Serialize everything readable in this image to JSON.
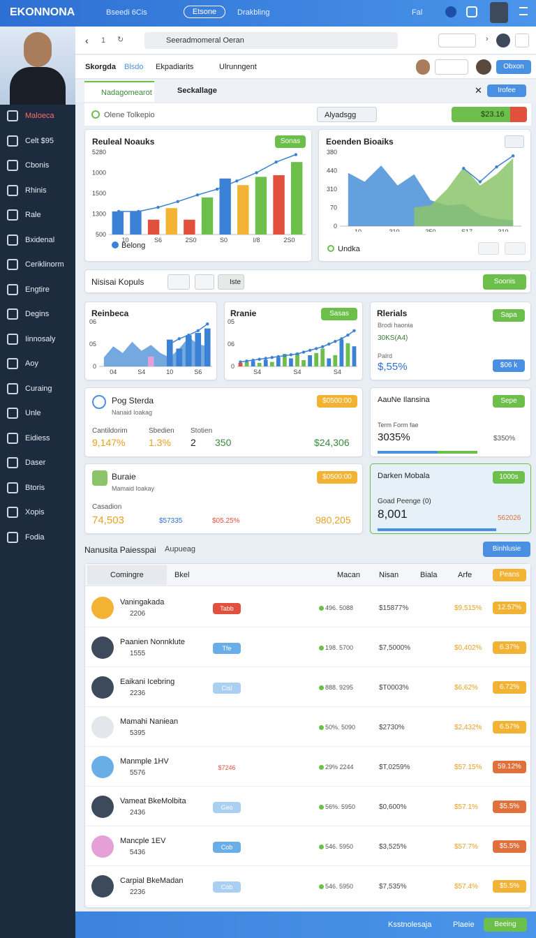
{
  "topbar": {
    "brand": "EKONNONA",
    "link1": "Bseedi 6Cis",
    "pill": "Etsone",
    "link2": "Drakbling",
    "link3": "Fal"
  },
  "sidebar": {
    "items": [
      "Maloeca",
      "Celt $95",
      "Cbonis",
      "Rhinis",
      "Rale",
      "Bxidenal",
      "Ceriklinorm",
      "Engtire",
      "Degins",
      "Iinnosaly",
      "Aoy",
      "Curaing",
      "Unle",
      "Eidiess",
      "Daser",
      "Btoris",
      "Xopis",
      "Fodia"
    ]
  },
  "browser": {
    "page": "1",
    "search": "Seeradmomeral Oeran"
  },
  "tabs": {
    "items": [
      "Skorgda",
      "Blsdo",
      "Ekpadiarits",
      "Ulrunngent"
    ],
    "button": "Obxon"
  },
  "subtabs": {
    "items": [
      "Nadagomearot",
      "Seckallage"
    ],
    "button": "Irofee"
  },
  "filter": {
    "radio": "Olene Tolkepio",
    "dropdown": "Alyadsgg",
    "price": "$23.16"
  },
  "charts": [
    {
      "title": "Reuleal Noauks",
      "action": "Sonas",
      "legend": "Belong",
      "ylim": [
        0,
        100
      ],
      "y_labels": [
        "5280",
        "1000",
        "1500",
        "1300",
        "500"
      ],
      "x_labels": [
        "10",
        "S6",
        "2S0",
        "S0",
        "I/8",
        "2S0"
      ],
      "bars": {
        "values": [
          28,
          28,
          18,
          32,
          18,
          45,
          68,
          60,
          70,
          72,
          88
        ],
        "colors": [
          "#3b82d6",
          "#3b82d6",
          "#e0503c",
          "#f2b233",
          "#e0503c",
          "#6cbf4a",
          "#3b82d6",
          "#f2b233",
          "#6cbf4a",
          "#e0503c",
          "#6cbf4a"
        ]
      },
      "line": {
        "color": "#3b82d6",
        "values": [
          28,
          28,
          33,
          40,
          48,
          55,
          65,
          75,
          88,
          97
        ]
      }
    },
    {
      "title": "Eoenden Bioaiks",
      "legend": "Undka",
      "ylim": [
        0,
        100
      ],
      "y_labels": [
        "380",
        "440",
        "310",
        "70",
        "0"
      ],
      "x_labels": [
        "10",
        "310",
        "350",
        "S17",
        "310"
      ],
      "areas": [
        {
          "color": "#4a8fd8",
          "values": [
            72,
            60,
            82,
            55,
            70,
            35,
            28,
            30,
            15,
            10,
            8
          ]
        },
        {
          "color": "#8cc46a",
          "values": [
            null,
            null,
            null,
            null,
            25,
            28,
            50,
            80,
            55,
            70,
            92
          ]
        }
      ],
      "line": {
        "color": "#3b82d6",
        "values": [
          null,
          null,
          null,
          null,
          null,
          null,
          null,
          78,
          60,
          80,
          95
        ]
      }
    },
    {
      "title": "Reinbeca",
      "ylim": [
        0,
        100
      ],
      "y_labels": [
        "06",
        "05",
        "0"
      ],
      "x_labels": [
        "04",
        "S4",
        "10",
        "S6"
      ],
      "areas": [
        {
          "color": "#5b9ad8",
          "values": [
            20,
            45,
            30,
            55,
            35,
            48,
            30,
            20,
            40,
            65,
            50,
            45
          ]
        }
      ],
      "bars": {
        "values": [
          0,
          0,
          0,
          0,
          0,
          22,
          0,
          60,
          40,
          70,
          75,
          85
        ],
        "colors": [
          "#3b82d6",
          "#3b82d6",
          "#3b82d6",
          "#3b82d6",
          "#3b82d6",
          "#e6a0d8",
          "#3b82d6",
          "#3b82d6",
          "#3b82d6",
          "#3b82d6",
          "#3b82d6",
          "#3b82d6"
        ]
      },
      "line": {
        "color": "#3b82d6",
        "values": [
          null,
          null,
          null,
          null,
          null,
          null,
          null,
          50,
          62,
          70,
          80,
          95
        ]
      }
    },
    {
      "title": "Rranie",
      "action": "Sasas",
      "ylim": [
        0,
        100
      ],
      "y_labels": [
        "05",
        "06",
        "0"
      ],
      "x_labels": [
        "S4",
        "S4",
        "S4"
      ],
      "bars": {
        "values": [
          8,
          10,
          12,
          8,
          15,
          10,
          20,
          28,
          18,
          30,
          14,
          25,
          30,
          40,
          18,
          25,
          60,
          52,
          45
        ],
        "colors": [
          "#e0503c",
          "#6cbf4a",
          "#3b82d6",
          "#6cbf4a",
          "#3b82d6",
          "#6cbf4a",
          "#3b82d6",
          "#6cbf4a",
          "#3b82d6",
          "#6cbf4a",
          "#6cbf4a",
          "#3b82d6",
          "#6cbf4a",
          "#6cbf4a",
          "#3b82d6",
          "#6cbf4a",
          "#3b82d6",
          "#6cbf4a",
          "#3b82d6"
        ]
      },
      "line": {
        "color": "#3b82d6",
        "values": [
          10,
          12,
          14,
          16,
          18,
          20,
          22,
          24,
          26,
          28,
          32,
          36,
          40,
          44,
          50,
          56,
          62,
          70,
          80
        ]
      }
    }
  ],
  "toolbar": {
    "title": "Nisisai Kopuls",
    "tag": "Iste",
    "button": "Soonis"
  },
  "stat_card": {
    "title": "Rlerials",
    "subtitle": "Brodi haonia",
    "note": "30KS(A4)",
    "label": "Palrd",
    "value": "$,55%",
    "button": "Sapa",
    "button2": "$06 k"
  },
  "wide_cards": [
    {
      "title": "Pog Sterda",
      "subtitle": "Nanaid Ioakag",
      "badge": "$0500:00",
      "labels": [
        "Cantildorim",
        "Sbedien",
        "Stotien"
      ],
      "values": [
        "9,147%",
        "1.3%",
        "2",
        "350"
      ],
      "total": "$24,306"
    },
    {
      "title": "Buraie",
      "subtitle": "Mamaid Ioakay",
      "badge": "$0500:00",
      "labels": [
        "Casadion"
      ],
      "values": [
        "74,503",
        "$57335",
        "$05.25%"
      ],
      "total": "980,205"
    }
  ],
  "side_cards": [
    {
      "title": "AauNe Ilansina",
      "button": "Sepe",
      "label": "Term Form fae",
      "value": "3035%",
      "note": "$350%"
    },
    {
      "title": "Darken Mobala",
      "button": "1000s",
      "label": "Goad Peenge (0)",
      "value": "8,001",
      "note": "562026"
    }
  ],
  "list": {
    "title": "Nanusita Paiesspai",
    "dropdown": "Aupueag",
    "button": "Binhlusie",
    "columns": [
      "Comingre",
      "Bkel",
      "Macan",
      "Nisan",
      "Biala",
      "Arfe"
    ],
    "header_button": "Peans",
    "rows": [
      {
        "name": "Vaningakada",
        "sub": "2206",
        "tag": "Tabb",
        "tag_color": "#e0503c",
        "change": "496. 5088",
        "v1": "$15877%",
        "v2": "$9,515%",
        "pct": "12.57%",
        "pct_color": "#f2b233",
        "avatar": "#f2b233"
      },
      {
        "name": "Paanien Nonnklute",
        "sub": "1555",
        "tag": "Tfe",
        "tag_color": "#6aaee8",
        "change": "198. 5700",
        "v1": "$7,5000%",
        "v2": "$0,402%",
        "pct": "6.37%",
        "pct_color": "#f2b233",
        "avatar": "#3d4a5c"
      },
      {
        "name": "Eaikani Icebring",
        "sub": "2236",
        "tag": "Cisl",
        "tag_color": "#a9cff2",
        "change": "888. 9295",
        "v1": "$T0003%",
        "v2": "$6,62%",
        "pct": "6.72%",
        "pct_color": "#f2b233",
        "avatar": "#3d4a5c"
      },
      {
        "name": "Mamahi Naniean",
        "sub": "5395",
        "change": "50%. 5090",
        "v1": "$2730%",
        "v2": "$2,432%",
        "pct": "6.57%",
        "pct_color": "#f2b233",
        "avatar": "#e3e6ea"
      },
      {
        "name": "Manmple 1HV",
        "sub": "5576",
        "tag": "$7246",
        "tag_color": "#ffffff",
        "change": "29% 2244",
        "v1": "$T,0259%",
        "v2": "$57.15%",
        "pct": "59.12%",
        "pct_color": "#e0703c",
        "avatar": "#6aaee8"
      },
      {
        "name": "Vameat BkeMolbita",
        "sub": "2436",
        "tag": "Geo",
        "tag_color": "#a9cff2",
        "change": "56%. 5950",
        "v1": "$0,600%",
        "v2": "$57.1%",
        "pct": "$5.5%",
        "pct_color": "#e0703c",
        "avatar": "#3d4a5c"
      },
      {
        "name": "Mancple 1EV",
        "sub": "5436",
        "tag": "Cob",
        "tag_color": "#6aaee8",
        "change": "546. 5950",
        "v1": "$3,525%",
        "v2": "$57.7%",
        "pct": "$5.5%",
        "pct_color": "#e0703c",
        "avatar": "#e6a0d8"
      },
      {
        "name": "Carpial BkeMadan",
        "sub": "2236",
        "tag": "Cob",
        "tag_color": "#a9cff2",
        "change": "546. 5950",
        "v1": "$7,535%",
        "v2": "$57.4%",
        "pct": "$5.5%",
        "pct_color": "#f2b233",
        "avatar": "#3d4a5c"
      }
    ]
  },
  "footer": {
    "link": "Ksstnolesaja",
    "link2": "Plaeie",
    "button": "Beeing"
  }
}
